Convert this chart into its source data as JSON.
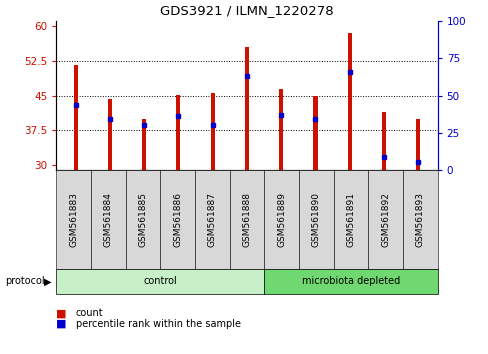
{
  "title": "GDS3921 / ILMN_1220278",
  "samples": [
    "GSM561883",
    "GSM561884",
    "GSM561885",
    "GSM561886",
    "GSM561887",
    "GSM561888",
    "GSM561889",
    "GSM561890",
    "GSM561891",
    "GSM561892",
    "GSM561893"
  ],
  "counts": [
    51.5,
    44.2,
    40.0,
    45.2,
    45.5,
    55.5,
    46.5,
    45.0,
    58.5,
    41.5,
    40.0
  ],
  "percentile_ranks": [
    44,
    34,
    30,
    36,
    30,
    63,
    37,
    34,
    66,
    9,
    5
  ],
  "groups": [
    "control",
    "control",
    "control",
    "control",
    "control",
    "control",
    "microbiota depleted",
    "microbiota depleted",
    "microbiota depleted",
    "microbiota depleted",
    "microbiota depleted"
  ],
  "group_colors": {
    "control": "#c8f0c8",
    "microbiota depleted": "#70d870"
  },
  "ylim_left": [
    29,
    61
  ],
  "ylim_right": [
    0,
    100
  ],
  "yticks_left": [
    30,
    37.5,
    45,
    52.5,
    60
  ],
  "yticks_right": [
    0,
    25,
    50,
    75,
    100
  ],
  "bar_color": "#cc1100",
  "blue_color": "#0000cc",
  "bar_width": 0.12,
  "background_color": "#ffffff",
  "legend_items": [
    "count",
    "percentile rank within the sample"
  ]
}
